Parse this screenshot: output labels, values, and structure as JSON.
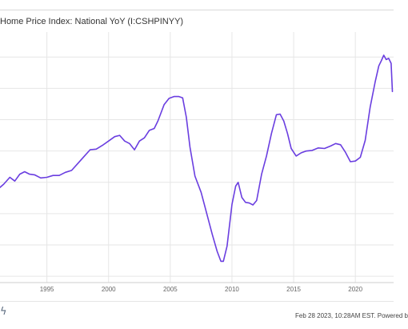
{
  "legend": {
    "series_name": "Home Price Index: National YoY (I:CSHPINYY)"
  },
  "footer": {
    "timestamp": "Feb 28 2023, 10:28AM EST. Powered b"
  },
  "icons": {
    "brand": "ycharts-bolt-icon"
  },
  "colors": {
    "series": "#6a3ee0",
    "grid": "#e6e6e6",
    "axis_text": "#666666"
  },
  "chart_data": {
    "type": "line",
    "x_ticks": [
      "1995",
      "2000",
      "2005",
      "2010",
      "2015",
      "2020"
    ],
    "xlim": [
      1991.2,
      2023.1
    ],
    "ylim": [
      -16,
      24
    ],
    "grid": "vertical at x ticks and horizontal every 5 units",
    "series": [
      {
        "name": "Home Price Index: National YoY (I:CSHPINYY)",
        "x": [
          1991.2,
          1991.5,
          1992.0,
          1992.4,
          1992.8,
          1993.2,
          1993.6,
          1994.0,
          1994.5,
          1995.0,
          1995.5,
          1996.0,
          1996.5,
          1997.0,
          1997.5,
          1998.0,
          1998.5,
          1999.0,
          1999.5,
          2000.0,
          2000.5,
          2000.9,
          2001.3,
          2001.7,
          2002.1,
          2002.5,
          2002.9,
          2003.3,
          2003.7,
          2004.0,
          2004.5,
          2004.9,
          2005.3,
          2005.7,
          2006.0,
          2006.3,
          2006.6,
          2007.0,
          2007.5,
          2008.0,
          2008.4,
          2008.8,
          2009.1,
          2009.3,
          2009.6,
          2010.0,
          2010.3,
          2010.5,
          2010.8,
          2011.1,
          2011.4,
          2011.7,
          2012.0,
          2012.4,
          2012.8,
          2013.2,
          2013.6,
          2013.9,
          2014.2,
          2014.5,
          2014.8,
          2015.2,
          2015.6,
          2016.0,
          2016.5,
          2017.0,
          2017.5,
          2018.0,
          2018.4,
          2018.8,
          2019.2,
          2019.6,
          2020.0,
          2020.4,
          2020.8,
          2021.2,
          2021.6,
          2021.9,
          2022.1,
          2022.3,
          2022.5,
          2022.7,
          2022.9,
          2023.0
        ],
        "y": [
          -0.8,
          -0.3,
          0.8,
          0.2,
          1.3,
          1.7,
          1.3,
          1.2,
          0.7,
          0.8,
          1.1,
          1.1,
          1.6,
          1.9,
          3.0,
          4.1,
          5.2,
          5.3,
          5.9,
          6.6,
          7.3,
          7.5,
          6.6,
          6.2,
          5.2,
          6.6,
          7.1,
          8.3,
          8.6,
          9.8,
          12.4,
          13.4,
          13.7,
          13.7,
          13.5,
          10.4,
          5.6,
          1.0,
          -1.6,
          -5.3,
          -8.3,
          -11.0,
          -12.6,
          -12.6,
          -10.2,
          -3.5,
          -0.6,
          0.0,
          -2.4,
          -3.2,
          -3.3,
          -3.6,
          -2.9,
          1.3,
          4.2,
          7.8,
          10.8,
          10.9,
          9.8,
          7.8,
          5.4,
          4.2,
          4.7,
          5.0,
          5.1,
          5.5,
          5.4,
          5.8,
          6.2,
          6.0,
          4.8,
          3.3,
          3.4,
          4.0,
          6.7,
          12.0,
          16.0,
          18.6,
          19.4,
          20.3,
          19.6,
          19.8,
          19.0,
          14.5
        ]
      }
    ]
  }
}
